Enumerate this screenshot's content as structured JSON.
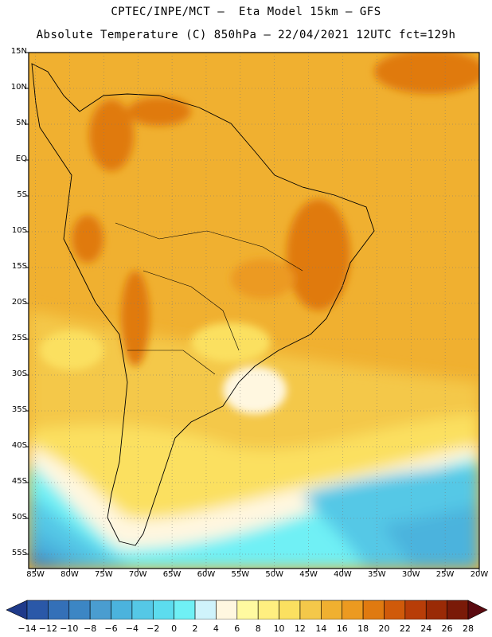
{
  "header": {
    "line1": "CPTEC/INPE/MCT –  Eta Model 15km – GFS",
    "line2": "Absolute Temperature (C) 850hPa – 22/04/2021 12UTC fct=129h"
  },
  "map": {
    "lat_labels": [
      "15N",
      "10N",
      "5N",
      "EQ",
      "5S",
      "10S",
      "15S",
      "20S",
      "25S",
      "30S",
      "35S",
      "40S",
      "45S",
      "50S",
      "55S"
    ],
    "lon_labels": [
      "85W",
      "80W",
      "75W",
      "70W",
      "65W",
      "60W",
      "55W",
      "50W",
      "45W",
      "40W",
      "35W",
      "30W",
      "25W",
      "20W"
    ],
    "lat_range": [
      15,
      -57
    ],
    "lon_range": [
      -86,
      -20
    ]
  },
  "colorbar": {
    "labels": [
      "-14",
      "-12",
      "-10",
      "-8",
      "-6",
      "-4",
      "-2",
      "0",
      "2",
      "4",
      "6",
      "8",
      "10",
      "12",
      "14",
      "16",
      "18",
      "20",
      "22",
      "24",
      "26",
      "28"
    ],
    "colors": [
      "#1f3a8a",
      "#2a58a8",
      "#3470b8",
      "#3c86c4",
      "#4a9dd0",
      "#4bb3dd",
      "#55c8e6",
      "#5cdcee",
      "#6ff0f5",
      "#cff3fb",
      "#fff7e0",
      "#fffaa0",
      "#ffef80",
      "#fbe060",
      "#f4c84a",
      "#f0b030",
      "#ec9a20",
      "#e07a10",
      "#d05a0a",
      "#b83d08",
      "#9a2a06",
      "#7a1a08",
      "#5a0a10"
    ]
  }
}
